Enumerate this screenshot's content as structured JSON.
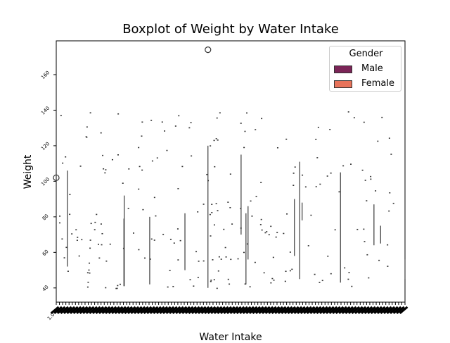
{
  "chart_data": {
    "type": "box",
    "title": "Boxplot of Weight by Water Intake",
    "xlabel": "Water Intake",
    "ylabel": "Weight",
    "ylim": [
      32,
      179
    ],
    "yticks": [
      40,
      60,
      80,
      100,
      120,
      140,
      160
    ],
    "first_x_tick_label": "1.0",
    "legend": {
      "title": "Gender",
      "placement": "top-right",
      "entries": [
        {
          "name": "Male",
          "color": "#7b2457"
        },
        {
          "name": "Female",
          "color": "#e8735a"
        }
      ]
    },
    "series": [
      {
        "name": "Male",
        "boxes": [
          {
            "pos": 0.032,
            "min": 52,
            "max": 106
          },
          {
            "pos": 0.194,
            "min": 41,
            "max": 79
          },
          {
            "pos": 0.268,
            "min": 42,
            "max": 80
          },
          {
            "pos": 0.369,
            "min": 50,
            "max": 82
          },
          {
            "pos": 0.435,
            "min": 40,
            "max": 120,
            "outliers": [
              174
            ]
          },
          {
            "pos": 0.53,
            "min": 70,
            "max": 115
          },
          {
            "pos": 0.683,
            "min": 58,
            "max": 90
          },
          {
            "pos": 0.815,
            "min": 43,
            "max": 105
          },
          {
            "pos": 0.911,
            "min": 64,
            "max": 87
          }
        ]
      },
      {
        "name": "Female",
        "boxes": [
          {
            "pos": 0.195,
            "min": 41,
            "max": 92
          },
          {
            "pos": 0.544,
            "min": 42,
            "max": 82
          },
          {
            "pos": 0.55,
            "min": 56,
            "max": 86
          },
          {
            "pos": 0.698,
            "min": 45,
            "max": 111
          },
          {
            "pos": 0.705,
            "min": 78,
            "max": 88
          },
          {
            "pos": 0.93,
            "min": 65,
            "max": 75
          },
          {
            "pos": 1.0,
            "min": 45,
            "max": 56
          }
        ]
      }
    ],
    "edge_outlier": {
      "y": 102
    }
  }
}
